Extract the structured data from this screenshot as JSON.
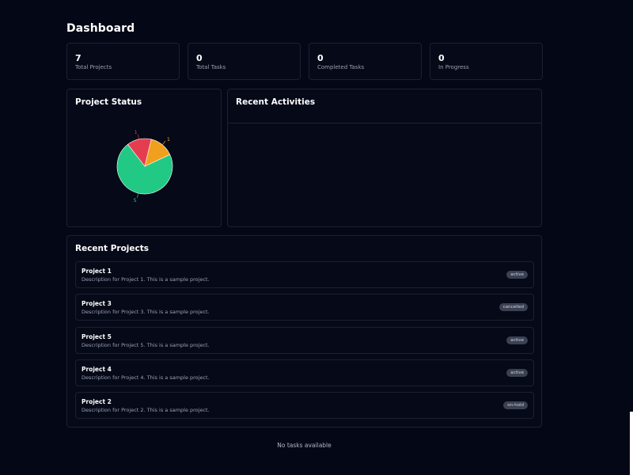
{
  "page": {
    "title": "Dashboard"
  },
  "stats": [
    {
      "value": "7",
      "label": "Total Projects"
    },
    {
      "value": "0",
      "label": "Total Tasks"
    },
    {
      "value": "0",
      "label": "Completed Tasks"
    },
    {
      "value": "0",
      "label": "In Progress"
    }
  ],
  "project_status": {
    "title": "Project Status",
    "chart_data": {
      "type": "pie",
      "slices": [
        {
          "value": 5,
          "label": "5",
          "color": "#22c985"
        },
        {
          "value": 1,
          "label": "1",
          "color": "#e43d4f"
        },
        {
          "value": 1,
          "label": "1",
          "color": "#f0a01c"
        }
      ]
    }
  },
  "recent_activities": {
    "title": "Recent Activities"
  },
  "recent_projects": {
    "title": "Recent Projects",
    "items": [
      {
        "name": "Project 1",
        "description": "Description for Project 1. This is a sample project.",
        "status": "active"
      },
      {
        "name": "Project 3",
        "description": "Description for Project 3. This is a sample project.",
        "status": "cancelled"
      },
      {
        "name": "Project 5",
        "description": "Description for Project 5. This is a sample project.",
        "status": "active"
      },
      {
        "name": "Project 4",
        "description": "Description for Project 4. This is a sample project.",
        "status": "active"
      },
      {
        "name": "Project 2",
        "description": "Description for Project 2. This is a sample project.",
        "status": "on-hold"
      }
    ]
  },
  "tasks": {
    "empty_message": "No tasks available"
  }
}
